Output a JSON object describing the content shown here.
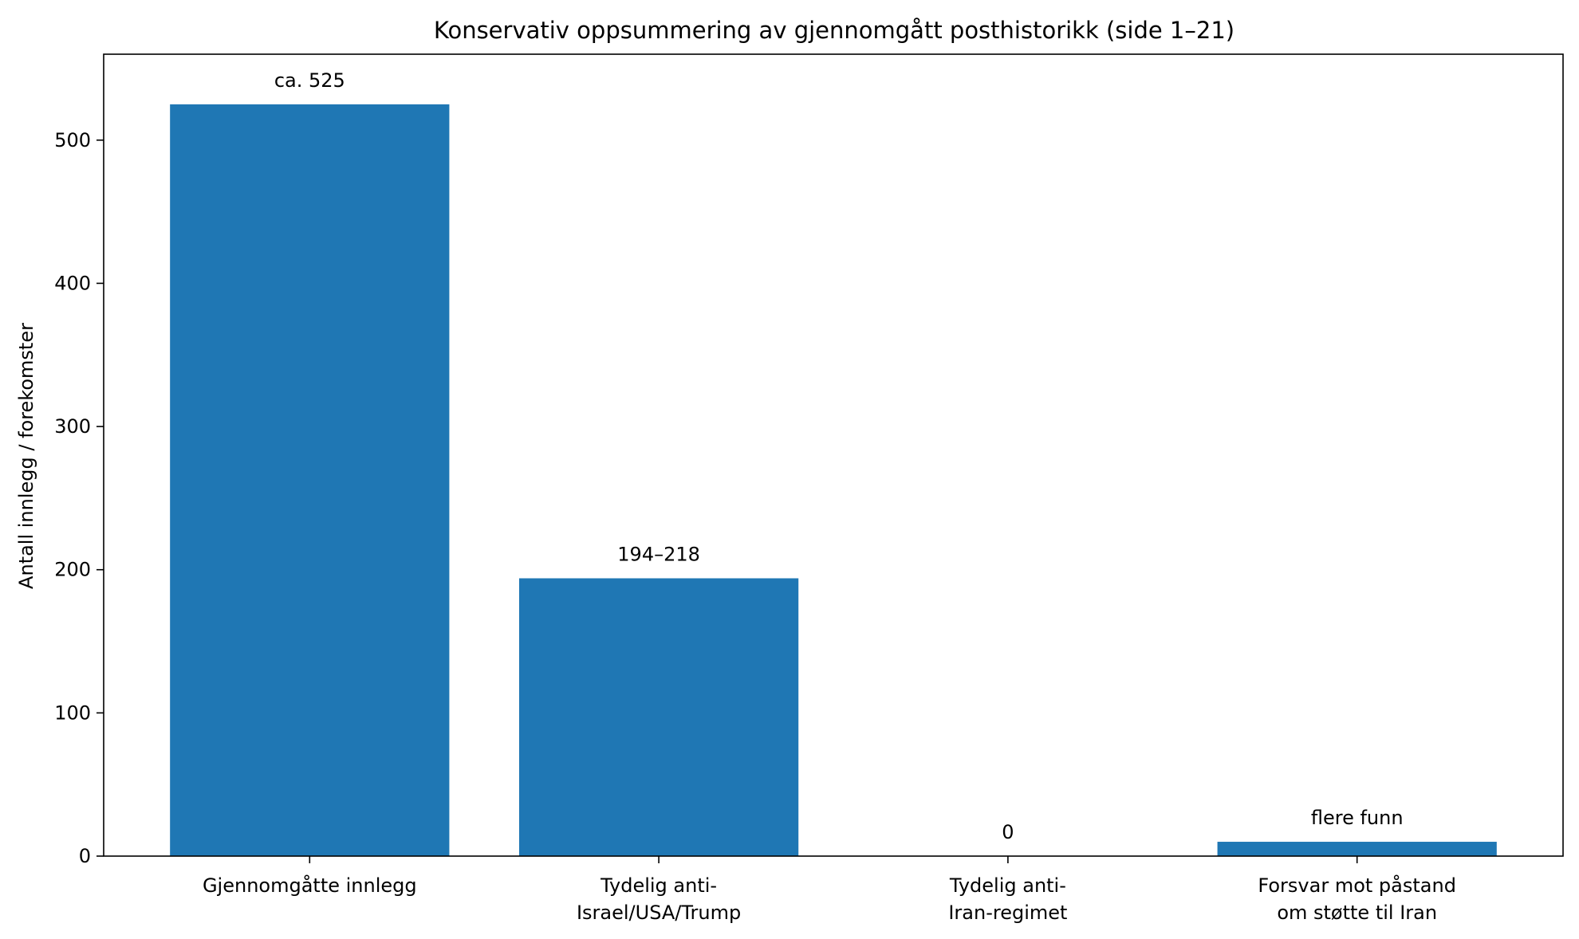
{
  "chart_data": {
    "type": "bar",
    "title": "Konservativ oppsummering av gjennomgått posthistorikk (side 1–21)",
    "xlabel": "",
    "ylabel": "Antall innlegg / forekomster",
    "categories": [
      [
        "Gjennomgåtte innlegg"
      ],
      [
        "Tydelig anti-",
        "Israel/USA/Trump"
      ],
      [
        "Tydelig anti-",
        "Iran-regimet"
      ],
      [
        "Forsvar mot påstand",
        "om støtte til Iran"
      ]
    ],
    "values": [
      525,
      194,
      0,
      10
    ],
    "value_labels": [
      "ca. 525",
      "194–218",
      "0",
      "flere funn"
    ],
    "ylim": [
      0,
      560
    ],
    "yticks": [
      0,
      100,
      200,
      300,
      400,
      500
    ],
    "grid": false,
    "bar_color": "#1f77b4"
  }
}
